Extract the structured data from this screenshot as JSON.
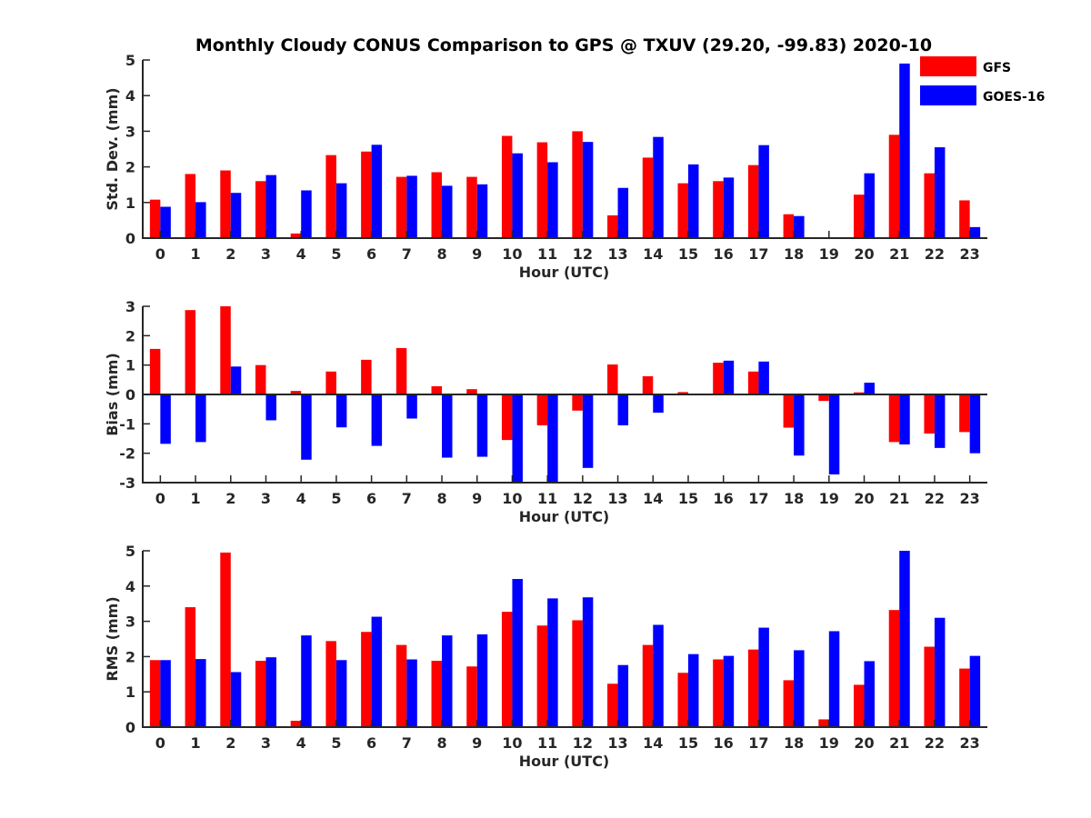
{
  "chart_data": {
    "type": "bar",
    "title": "Monthly Cloudy CONUS Comparison to GPS @ TXUV (29.20, -99.83) 2020-10",
    "legend": {
      "placement": "top-right",
      "entries": [
        {
          "name": "GFS",
          "color": "#ff0000"
        },
        {
          "name": "GOES-16",
          "color": "#0000ff"
        }
      ]
    },
    "categories": [
      "0",
      "1",
      "2",
      "3",
      "4",
      "5",
      "6",
      "7",
      "8",
      "9",
      "10",
      "11",
      "12",
      "13",
      "14",
      "15",
      "16",
      "17",
      "18",
      "19",
      "20",
      "21",
      "22",
      "23"
    ],
    "panels": [
      {
        "id": "std",
        "xlabel": "Hour (UTC)",
        "ylabel": "Std. Dev. (mm)",
        "ylim": [
          0,
          5
        ],
        "yticks": [
          "0",
          "1",
          "2",
          "3",
          "4",
          "5"
        ],
        "zero_line": false,
        "series": [
          {
            "name": "GFS",
            "color": "#ff0000",
            "values": [
              1.08,
              1.8,
              1.9,
              1.6,
              0.13,
              2.33,
              2.43,
              1.72,
              1.85,
              1.72,
              2.87,
              2.69,
              3.0,
              0.64,
              2.26,
              1.54,
              1.6,
              2.05,
              0.67,
              0,
              1.22,
              2.9,
              1.82,
              1.06
            ]
          },
          {
            "name": "GOES-16",
            "color": "#0000ff",
            "values": [
              0.88,
              1.01,
              1.27,
              1.77,
              1.34,
              1.54,
              2.62,
              1.75,
              1.47,
              1.51,
              2.38,
              2.13,
              2.7,
              1.41,
              2.84,
              2.07,
              1.7,
              2.61,
              0.62,
              0,
              1.82,
              4.9,
              2.55,
              0.31
            ]
          }
        ]
      },
      {
        "id": "bias",
        "xlabel": "Hour (UTC)",
        "ylabel": "Bias (mm)",
        "ylim": [
          -3,
          3
        ],
        "yticks": [
          "-3",
          "-2",
          "-1",
          "0",
          "1",
          "2",
          "3"
        ],
        "zero_line": true,
        "series": [
          {
            "name": "GFS",
            "color": "#ff0000",
            "values": [
              1.55,
              2.87,
              3.0,
              1.0,
              0.12,
              0.78,
              1.18,
              1.58,
              0.28,
              0.18,
              -1.55,
              -1.05,
              -0.55,
              1.02,
              0.62,
              0.08,
              1.08,
              0.78,
              -1.13,
              -0.22,
              0.07,
              -1.62,
              -1.33,
              -1.28
            ]
          },
          {
            "name": "GOES-16",
            "color": "#0000ff",
            "values": [
              -1.68,
              -1.62,
              0.95,
              -0.88,
              -2.22,
              -1.12,
              -1.75,
              -0.82,
              -2.15,
              -2.12,
              -3.0,
              -2.98,
              -2.5,
              -1.05,
              -0.62,
              0.03,
              1.15,
              1.12,
              -2.08,
              -2.72,
              0.4,
              -1.7,
              -1.82,
              -2.0
            ]
          }
        ]
      },
      {
        "id": "rms",
        "xlabel": "Hour (UTC)",
        "ylabel": "RMS (mm)",
        "ylim": [
          0,
          5
        ],
        "yticks": [
          "0",
          "1",
          "2",
          "3",
          "4",
          "5"
        ],
        "zero_line": false,
        "series": [
          {
            "name": "GFS",
            "color": "#ff0000",
            "values": [
              1.9,
              3.4,
              4.95,
              1.88,
              0.18,
              2.44,
              2.7,
              2.33,
              1.88,
              1.72,
              3.27,
              2.88,
              3.03,
              1.23,
              2.33,
              1.54,
              1.92,
              2.2,
              1.33,
              0.22,
              1.2,
              3.32,
              2.28,
              1.66
            ]
          },
          {
            "name": "GOES-16",
            "color": "#0000ff",
            "values": [
              1.9,
              1.93,
              1.56,
              1.98,
              2.6,
              1.9,
              3.13,
              1.92,
              2.6,
              2.63,
              4.2,
              3.65,
              3.68,
              1.76,
              2.9,
              2.07,
              2.02,
              2.82,
              2.18,
              2.72,
              1.87,
              5.0,
              3.1,
              2.02
            ]
          }
        ]
      }
    ]
  }
}
